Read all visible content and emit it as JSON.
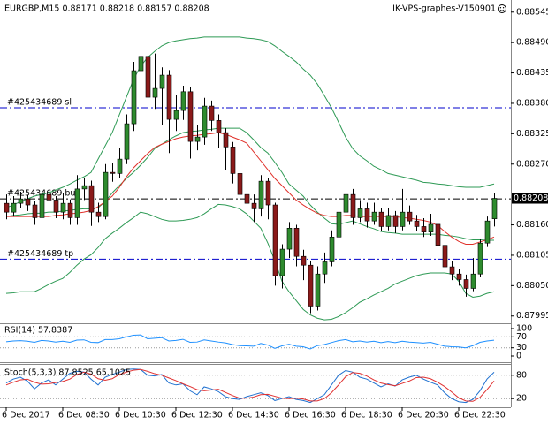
{
  "chart_data": [
    {
      "type": "candlestick",
      "title": "EURGBP,M15  0.88171 0.88218 0.88157 0.88208",
      "subtitle": "IK-VPS-graphes-V150901",
      "categories": [
        "6 Dec 2017",
        null,
        null,
        null,
        null,
        null,
        null,
        null,
        "6 Dec 08:30",
        null,
        null,
        null,
        null,
        null,
        null,
        null,
        "6 Dec 10:30",
        null,
        null,
        null,
        null,
        null,
        null,
        null,
        "6 Dec 12:30",
        null,
        null,
        null,
        null,
        null,
        null,
        null,
        "6 Dec 14:30",
        null,
        null,
        null,
        null,
        null,
        null,
        null,
        "6 Dec 16:30",
        null,
        null,
        null,
        null,
        null,
        null,
        null,
        "6 Dec 18:30",
        null,
        null,
        null,
        null,
        null,
        null,
        null,
        "6 Dec 20:30",
        null,
        null,
        null,
        null,
        null,
        null,
        null,
        "6 Dec 22:30",
        null,
        null,
        null,
        null,
        null
      ],
      "open": [
        0.88199,
        0.88183,
        0.88199,
        0.88207,
        0.88196,
        0.88173,
        0.88215,
        0.88205,
        0.88183,
        0.88199,
        0.88173,
        0.88225,
        0.88231,
        0.88183,
        0.88175,
        0.88255,
        0.88253,
        0.88279,
        0.88343,
        0.88439,
        0.88465,
        0.88391,
        0.88407,
        0.88431,
        0.88351,
        0.88367,
        0.88401,
        0.88311,
        0.88319,
        0.88375,
        0.88349,
        0.88327,
        0.88301,
        0.88253,
        0.88215,
        0.88199,
        0.88189,
        0.88239,
        0.88196,
        0.88068,
        0.88116,
        0.88154,
        0.88103,
        0.88087,
        0.88013,
        0.88071,
        0.88093,
        0.88138,
        0.88183,
        0.88215,
        0.88173,
        0.88189,
        0.88167,
        0.88183,
        0.88157,
        0.88177,
        0.88157,
        0.88183,
        0.88167,
        0.88157,
        0.88147,
        0.88161,
        0.88123,
        0.88084,
        0.88071,
        0.88061,
        0.88045,
        0.88071,
        0.88127,
        0.88171
      ],
      "high": [
        0.88215,
        0.88212,
        0.8822,
        0.88214,
        0.88204,
        0.88226,
        0.88232,
        0.88212,
        0.88218,
        0.88206,
        0.8825,
        0.88245,
        0.8824,
        0.882,
        0.8827,
        0.88272,
        0.883,
        0.8836,
        0.88455,
        0.8853,
        0.8848,
        0.8847,
        0.88445,
        0.8844,
        0.88395,
        0.88412,
        0.8841,
        0.8834,
        0.8839,
        0.88385,
        0.8836,
        0.88335,
        0.8831,
        0.88265,
        0.88228,
        0.88215,
        0.8825,
        0.88245,
        0.882,
        0.88125,
        0.88165,
        0.8816,
        0.88115,
        0.88095,
        0.88085,
        0.8811,
        0.8815,
        0.882,
        0.8823,
        0.88225,
        0.88205,
        0.882,
        0.882,
        0.8819,
        0.8819,
        0.88185,
        0.88225,
        0.88195,
        0.88178,
        0.88172,
        0.8818,
        0.88168,
        0.8813,
        0.88095,
        0.8808,
        0.8807,
        0.881,
        0.88135,
        0.88175,
        0.88218
      ],
      "low": [
        0.8817,
        0.88175,
        0.8819,
        0.88185,
        0.8816,
        0.88165,
        0.88195,
        0.88172,
        0.8817,
        0.8816,
        0.8816,
        0.88205,
        0.88158,
        0.88165,
        0.8817,
        0.88238,
        0.88245,
        0.8827,
        0.8833,
        0.8842,
        0.8833,
        0.8837,
        0.8834,
        0.8829,
        0.8833,
        0.8835,
        0.8828,
        0.88295,
        0.88305,
        0.8833,
        0.883,
        0.8826,
        0.88235,
        0.88195,
        0.8815,
        0.88165,
        0.88175,
        0.8817,
        0.8805,
        0.88045,
        0.881,
        0.88085,
        0.8806,
        0.88,
        0.88005,
        0.88055,
        0.88085,
        0.8813,
        0.8817,
        0.8816,
        0.88165,
        0.88155,
        0.8816,
        0.88148,
        0.8815,
        0.88145,
        0.8815,
        0.8816,
        0.88148,
        0.88138,
        0.8814,
        0.88115,
        0.88075,
        0.8806,
        0.8805,
        0.8803,
        0.8804,
        0.88065,
        0.8812,
        0.88157
      ],
      "close": [
        0.88183,
        0.88199,
        0.88207,
        0.88196,
        0.88173,
        0.88215,
        0.88205,
        0.88183,
        0.88199,
        0.88173,
        0.88225,
        0.88231,
        0.88183,
        0.88175,
        0.88255,
        0.88253,
        0.88279,
        0.88343,
        0.88439,
        0.88465,
        0.88391,
        0.88407,
        0.88431,
        0.88351,
        0.88367,
        0.88401,
        0.88311,
        0.88319,
        0.88375,
        0.88349,
        0.88327,
        0.88301,
        0.88253,
        0.88215,
        0.88199,
        0.88189,
        0.88239,
        0.88196,
        0.88068,
        0.88116,
        0.88154,
        0.88103,
        0.88087,
        0.88013,
        0.88071,
        0.88093,
        0.88138,
        0.88183,
        0.88215,
        0.88173,
        0.88189,
        0.88167,
        0.88183,
        0.88157,
        0.88177,
        0.88157,
        0.88183,
        0.88167,
        0.88157,
        0.88147,
        0.88161,
        0.88123,
        0.88084,
        0.88071,
        0.88061,
        0.88045,
        0.88071,
        0.88127,
        0.88167,
        0.88208
      ],
      "up_color": "#2e8b2e",
      "down_color": "#8b1a1a",
      "overlays": [
        {
          "color": "#2e9a55",
          "values": [
            0.88191,
            0.88196,
            0.88202,
            0.88207,
            0.88212,
            0.88215,
            0.88218,
            0.88223,
            0.88228,
            0.88234,
            0.88241,
            0.88247,
            0.88255,
            0.88279,
            0.88303,
            0.88327,
            0.88359,
            0.88391,
            0.88423,
            0.88447,
            0.88463,
            0.88474,
            0.88484,
            0.8849,
            0.88493,
            0.88495,
            0.88497,
            0.88498,
            0.885,
            0.885,
            0.885,
            0.885,
            0.885,
            0.885,
            0.88498,
            0.88497,
            0.88495,
            0.88492,
            0.88484,
            0.88474,
            0.88465,
            0.88455,
            0.88442,
            0.88431,
            0.88415,
            0.88394,
            0.88372,
            0.88346,
            0.88319,
            0.88298,
            0.88285,
            0.88276,
            0.88266,
            0.8826,
            0.88253,
            0.8825,
            0.88247,
            0.88244,
            0.88241,
            0.88237,
            0.88236,
            0.88234,
            0.88233,
            0.88231,
            0.88229,
            0.88228,
            0.88228,
            0.88228,
            0.88231,
            0.88234
          ]
        },
        {
          "color": "#2e9a55",
          "values": [
            0.88175,
            0.88177,
            0.88178,
            0.8818,
            0.88181,
            0.88181,
            0.88183,
            0.88183,
            0.88185,
            0.88186,
            0.88188,
            0.88189,
            0.88189,
            0.88191,
            0.88202,
            0.88218,
            0.88231,
            0.88244,
            0.88255,
            0.88268,
            0.88282,
            0.88298,
            0.88306,
            0.88314,
            0.88321,
            0.88327,
            0.88329,
            0.8833,
            0.88332,
            0.88333,
            0.88335,
            0.88335,
            0.88335,
            0.88335,
            0.88327,
            0.88314,
            0.883,
            0.8829,
            0.88273,
            0.88255,
            0.88234,
            0.88223,
            0.88212,
            0.88196,
            0.88183,
            0.88172,
            0.88162,
            0.88161,
            0.88164,
            0.88167,
            0.88162,
            0.88157,
            0.88153,
            0.88148,
            0.88146,
            0.88145,
            0.88143,
            0.88143,
            0.88143,
            0.88143,
            0.88143,
            0.88143,
            0.88141,
            0.8814,
            0.88138,
            0.88135,
            0.88133,
            0.88133,
            0.88132,
            0.88132
          ]
        },
        {
          "color": "#2e9a55",
          "values": [
            0.88036,
            0.88037,
            0.88039,
            0.88039,
            0.88039,
            0.88045,
            0.88052,
            0.88058,
            0.88063,
            0.88074,
            0.88087,
            0.88098,
            0.88106,
            0.88119,
            0.88135,
            0.88145,
            0.88154,
            0.88164,
            0.88173,
            0.88183,
            0.8818,
            0.88175,
            0.8817,
            0.88167,
            0.88167,
            0.88168,
            0.8817,
            0.88173,
            0.8818,
            0.88189,
            0.88197,
            0.88196,
            0.88193,
            0.88189,
            0.8818,
            0.88167,
            0.88154,
            0.88127,
            0.88095,
            0.88058,
            0.88039,
            0.88023,
            0.88007,
            0.87997,
            0.87991,
            0.87988,
            0.87989,
            0.87994,
            0.88001,
            0.8801,
            0.8802,
            0.88026,
            0.88033,
            0.88039,
            0.88045,
            0.88053,
            0.88058,
            0.88063,
            0.88068,
            0.88071,
            0.88073,
            0.88073,
            0.88073,
            0.88071,
            0.88058,
            0.88036,
            0.88029,
            0.88031,
            0.88036,
            0.88039
          ]
        },
        {
          "color": "#e0302a",
          "values": [
            0.88175,
            0.88175,
            0.88175,
            0.88175,
            0.88175,
            0.88175,
            0.88175,
            0.88177,
            0.88178,
            0.8818,
            0.88181,
            0.88183,
            0.88186,
            0.88193,
            0.88202,
            0.88212,
            0.88228,
            0.88247,
            0.88263,
            0.88276,
            0.88289,
            0.883,
            0.88306,
            0.88311,
            0.88316,
            0.88319,
            0.88321,
            0.88322,
            0.88324,
            0.88325,
            0.88327,
            0.88324,
            0.88319,
            0.88314,
            0.88308,
            0.88292,
            0.88276,
            0.8826,
            0.88244,
            0.88231,
            0.88218,
            0.88205,
            0.88196,
            0.88188,
            0.88181,
            0.88177,
            0.88175,
            0.88175,
            0.88177,
            0.88177,
            0.88175,
            0.88175,
            0.88175,
            0.88175,
            0.88175,
            0.88175,
            0.88173,
            0.88172,
            0.8817,
            0.88168,
            0.88165,
            0.88159,
            0.88148,
            0.88138,
            0.8813,
            0.88125,
            0.88125,
            0.88129,
            0.88133,
            0.88138
          ]
        }
      ],
      "levels": [
        {
          "name": "#425434689 sl",
          "value": 0.88372,
          "color": "#0000cc"
        },
        {
          "name": "#425434689 buy",
          "value": 0.88207,
          "color": "#000000"
        },
        {
          "name": "#425434689 tp",
          "value": 0.88098,
          "color": "#0000cc"
        }
      ],
      "last": 0.88208,
      "ylim": [
        0.87985,
        0.88567
      ],
      "yticks": [
        0.88545,
        {
          "value": 0.8849,
          "label": "0.88490"
        },
        0.88435,
        {
          "value": 0.8838,
          "label": "0.88380"
        },
        0.88325,
        {
          "value": 0.8827,
          "label": "0.88270"
        },
        {
          "value": 0.8816,
          "label": "0.88160"
        },
        0.88105,
        {
          "value": 0.8805,
          "label": "0.88050"
        },
        0.87995
      ]
    },
    {
      "type": "line",
      "title": "RSI(14) 57.8387",
      "color": "#1e90ff",
      "values": [
        52,
        55,
        56,
        54,
        50,
        57,
        55,
        51,
        54,
        50,
        58,
        59,
        50,
        49,
        60,
        60,
        63,
        70,
        76,
        77,
        63,
        65,
        67,
        55,
        57,
        61,
        50,
        51,
        59,
        55,
        51,
        48,
        42,
        38,
        37,
        36,
        46,
        40,
        28,
        37,
        43,
        36,
        34,
        26,
        38,
        42,
        49,
        56,
        60,
        52,
        55,
        51,
        54,
        49,
        53,
        49,
        54,
        51,
        49,
        47,
        50,
        43,
        36,
        34,
        33,
        30,
        38,
        50,
        55,
        57.8387
      ],
      "ylim": [
        0,
        100
      ],
      "yticks": [
        100,
        70,
        30,
        0
      ]
    },
    {
      "type": "line",
      "title": "Stoch(5,3,3) 87.8525 65.1025",
      "series": [
        {
          "color": "#1e70d0",
          "values": [
            60,
            70,
            75,
            65,
            45,
            60,
            68,
            55,
            70,
            85,
            90,
            88,
            70,
            55,
            75,
            82,
            88,
            95,
            96,
            95,
            80,
            78,
            82,
            60,
            55,
            58,
            40,
            30,
            50,
            45,
            38,
            25,
            20,
            18,
            25,
            30,
            35,
            28,
            15,
            20,
            25,
            18,
            15,
            10,
            20,
            30,
            55,
            80,
            92,
            88,
            75,
            70,
            60,
            50,
            58,
            52,
            68,
            75,
            80,
            70,
            62,
            55,
            35,
            20,
            12,
            10,
            18,
            40,
            70,
            87.8525
          ]
        },
        {
          "color": "#e03030",
          "values": [
            55,
            62,
            68,
            70,
            62,
            57,
            58,
            61,
            64,
            70,
            82,
            88,
            83,
            71,
            67,
            71,
            82,
            88,
            93,
            95,
            90,
            84,
            80,
            73,
            66,
            58,
            51,
            43,
            40,
            42,
            44,
            36,
            28,
            21,
            21,
            24,
            30,
            31,
            26,
            21,
            20,
            21,
            19,
            14,
            14,
            20,
            35,
            55,
            76,
            87,
            85,
            78,
            68,
            60,
            56,
            53,
            59,
            65,
            74,
            75,
            71,
            62,
            51,
            37,
            22,
            14,
            13,
            23,
            43,
            65.1025
          ]
        }
      ],
      "ylim": [
        0,
        100
      ],
      "yticks": [
        80,
        20
      ]
    }
  ]
}
